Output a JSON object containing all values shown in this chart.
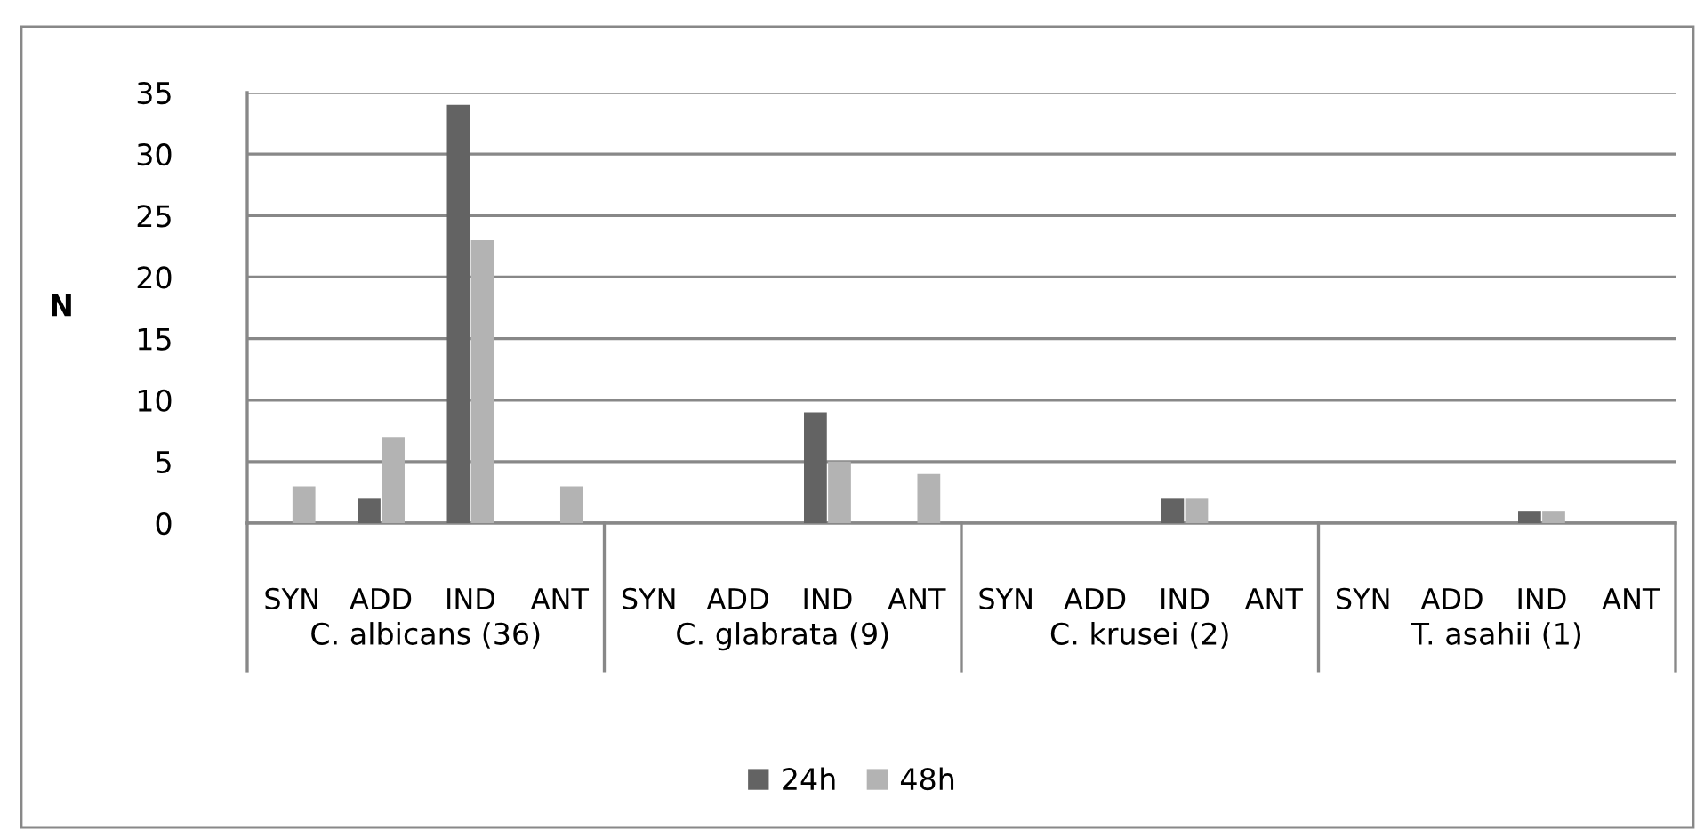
{
  "chart_data": {
    "type": "bar",
    "ylabel": "N",
    "categories": [
      "SYN",
      "ADD",
      "IND",
      "ANT",
      "SYN",
      "ADD",
      "IND",
      "ANT",
      "SYN",
      "ADD",
      "IND",
      "ANT",
      "SYN",
      "ADD",
      "IND",
      "ANT"
    ],
    "series": [
      {
        "name": "24h",
        "color": "#636363",
        "values": [
          0,
          2,
          34,
          0,
          0,
          0,
          9,
          0,
          0,
          0,
          2,
          0,
          0,
          0,
          1,
          0
        ]
      },
      {
        "name": "48h",
        "color": "#b3b3b3",
        "values": [
          3,
          7,
          23,
          3,
          0,
          0,
          5,
          4,
          0,
          0,
          2,
          0,
          0,
          0,
          1,
          0
        ]
      }
    ],
    "annotations": [
      "C. albicans (36)",
      "C. glabrata (9)",
      "C. krusei (2)",
      "T. asahii (1)"
    ],
    "ylim": [
      0,
      35
    ],
    "yticks": [
      0,
      5,
      10,
      15,
      20,
      25,
      30,
      35
    ],
    "grid": "y",
    "legend": "bottom"
  }
}
